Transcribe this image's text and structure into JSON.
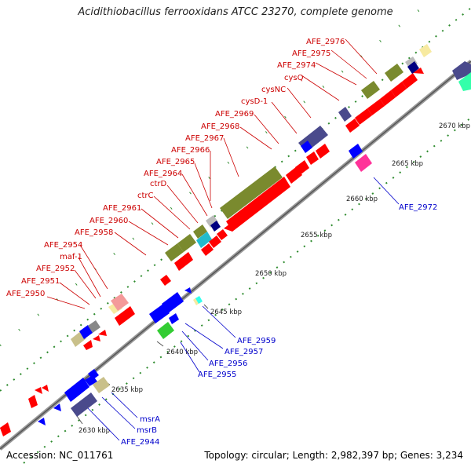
{
  "title": "Acidithiobacillus ferrooxidans ATCC 23270, complete genome",
  "footer": {
    "accession": "Accession: NC_011761",
    "topology": "Topology: circular; Length: 2,982,397 bp; Genes: 3,234"
  },
  "colors": {
    "backbone": "#999999",
    "gene_red": "#ff0000",
    "gene_blue": "#0000ff",
    "gene_olive": "#7a8a2e",
    "gene_navy": "#4a4a8c",
    "gene_tan": "#c9c08a",
    "gene_gray": "#999999",
    "gene_pink": "#ff3399",
    "gene_green": "#33cc33",
    "gene_cyan": "#22bbcc",
    "gene_salmon": "#f49a9a",
    "label_red": "#cc0000",
    "label_blue": "#0000cc",
    "gc_dot": "#2e8b2e"
  },
  "kbp_ticks": [
    "2630 kbp",
    "2635 kbp",
    "2640 kbp",
    "2645 kbp",
    "2650 kbp",
    "2655 kbp",
    "2660 kbp",
    "2665 kbp",
    "2670 kbp"
  ],
  "labels_upper": [
    "AFE_2950",
    "AFE_2951",
    "AFE_2952",
    "maf-1",
    "AFE_2954",
    "AFE_2958",
    "AFE_2960",
    "AFE_2961",
    "ctrC",
    "ctrD",
    "AFE_2964",
    "AFE_2965",
    "AFE_2966",
    "AFE_2967",
    "AFE_2968",
    "AFE_2969",
    "cysD-1",
    "cysNC",
    "cysQ",
    "AFE_2974",
    "AFE_2975",
    "AFE_2976"
  ],
  "labels_lower": [
    "msrA",
    "msrB",
    "AFE_2944",
    "AFE_2955",
    "AFE_2956",
    "AFE_2957",
    "AFE_2959",
    "AFE_2972"
  ]
}
